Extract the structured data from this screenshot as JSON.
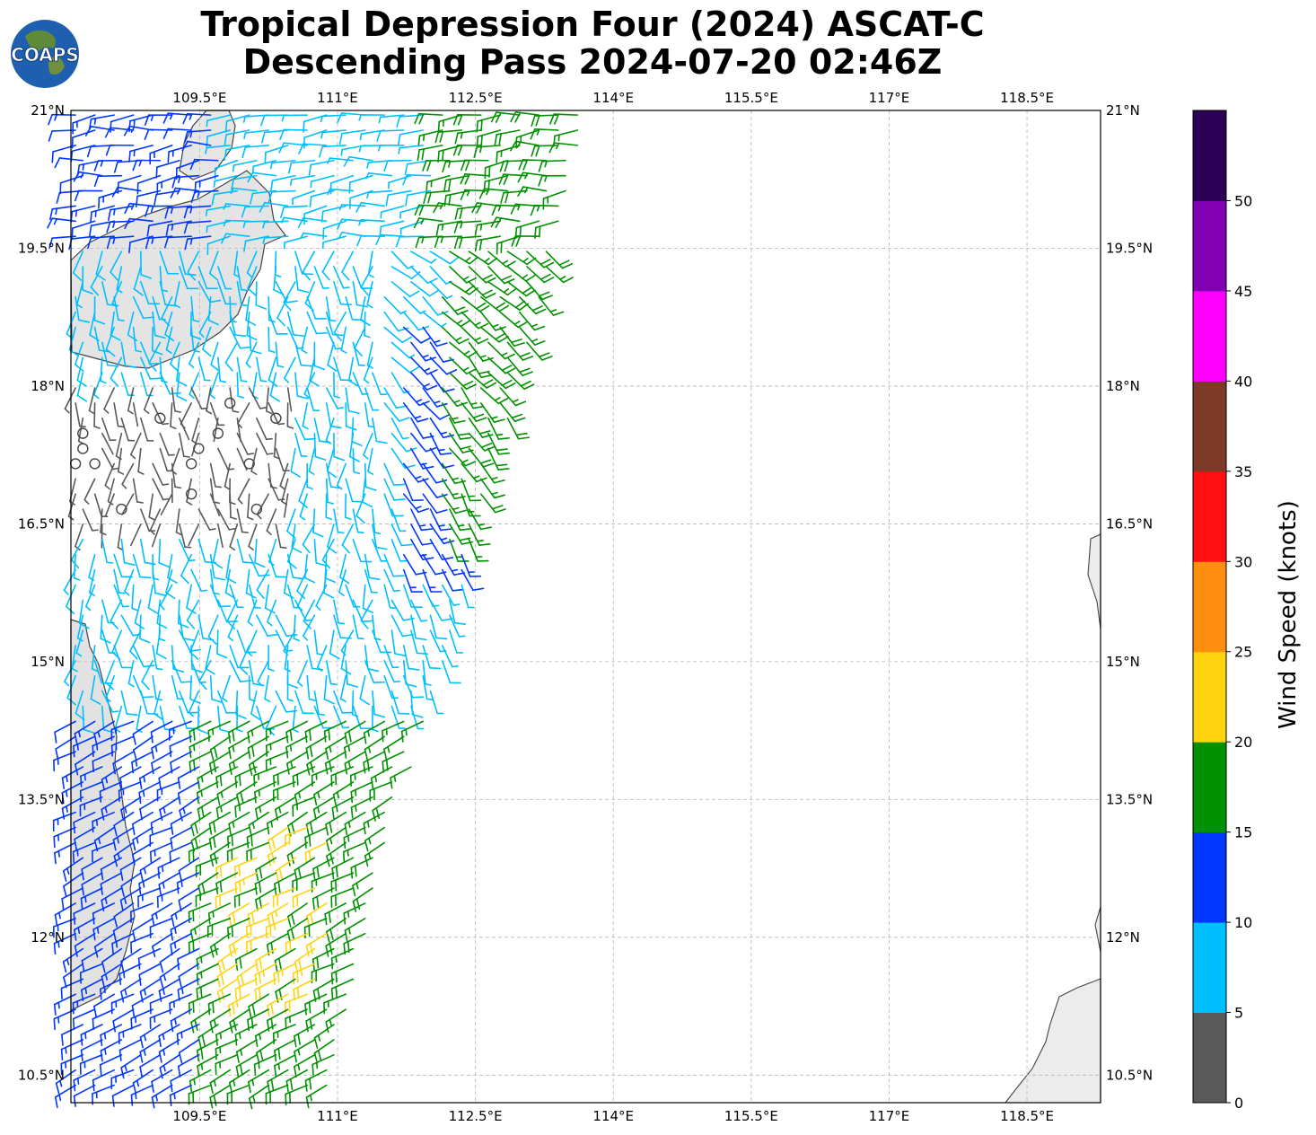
{
  "title": {
    "line1": "Tropical Depression Four (2024) ASCAT-C",
    "line2": "Descending Pass 2024-07-20 02:46Z"
  },
  "logo": {
    "text": "COAPS"
  },
  "map": {
    "lon_range": [
      108.1,
      119.3
    ],
    "lat_range": [
      10.2,
      21.0
    ],
    "lon_ticks": [
      "109.5°E",
      "111°E",
      "112.5°E",
      "114°E",
      "115.5°E",
      "117°E",
      "118.5°E"
    ],
    "lat_ticks": [
      "21°N",
      "19.5°N",
      "18°N",
      "16.5°N",
      "15°N",
      "13.5°N",
      "12°N",
      "10.5°N"
    ],
    "gridlines": true
  },
  "colorbar": {
    "label": "Wind Speed (knots)",
    "tick_labels": [
      "0",
      "5",
      "10",
      "15",
      "20",
      "25",
      "30",
      "35",
      "40",
      "45",
      "50"
    ],
    "colors": [
      "#595959",
      "#00bfff",
      "#0037ff",
      "#009100",
      "#ffd30f",
      "#ff8e0f",
      "#ff0f0f",
      "#7e3a28",
      "#ff00ff",
      "#8200b4",
      "#2b0055"
    ]
  },
  "chart_data": {
    "type": "wind-barb-map",
    "title": "Tropical Depression Four (2024) ASCAT-C Descending Pass 2024-07-20 02:46Z",
    "units": "knots",
    "speed_classes": [
      {
        "range": "0-5",
        "color": "#595959"
      },
      {
        "range": "5-10",
        "color": "#00bfff"
      },
      {
        "range": "10-15",
        "color": "#0037ff"
      },
      {
        "range": "15-20",
        "color": "#009100"
      },
      {
        "range": "20-25",
        "color": "#ffd30f"
      },
      {
        "range": "25-30",
        "color": "#ff8e0f"
      },
      {
        "range": "30-35",
        "color": "#ff0f0f"
      },
      {
        "range": "35-40",
        "color": "#7e3a28"
      },
      {
        "range": "40-45",
        "color": "#ff00ff"
      },
      {
        "range": "45-50",
        "color": "#8200b4"
      },
      {
        "range": ">50",
        "color": "#2b0055"
      }
    ]
  }
}
